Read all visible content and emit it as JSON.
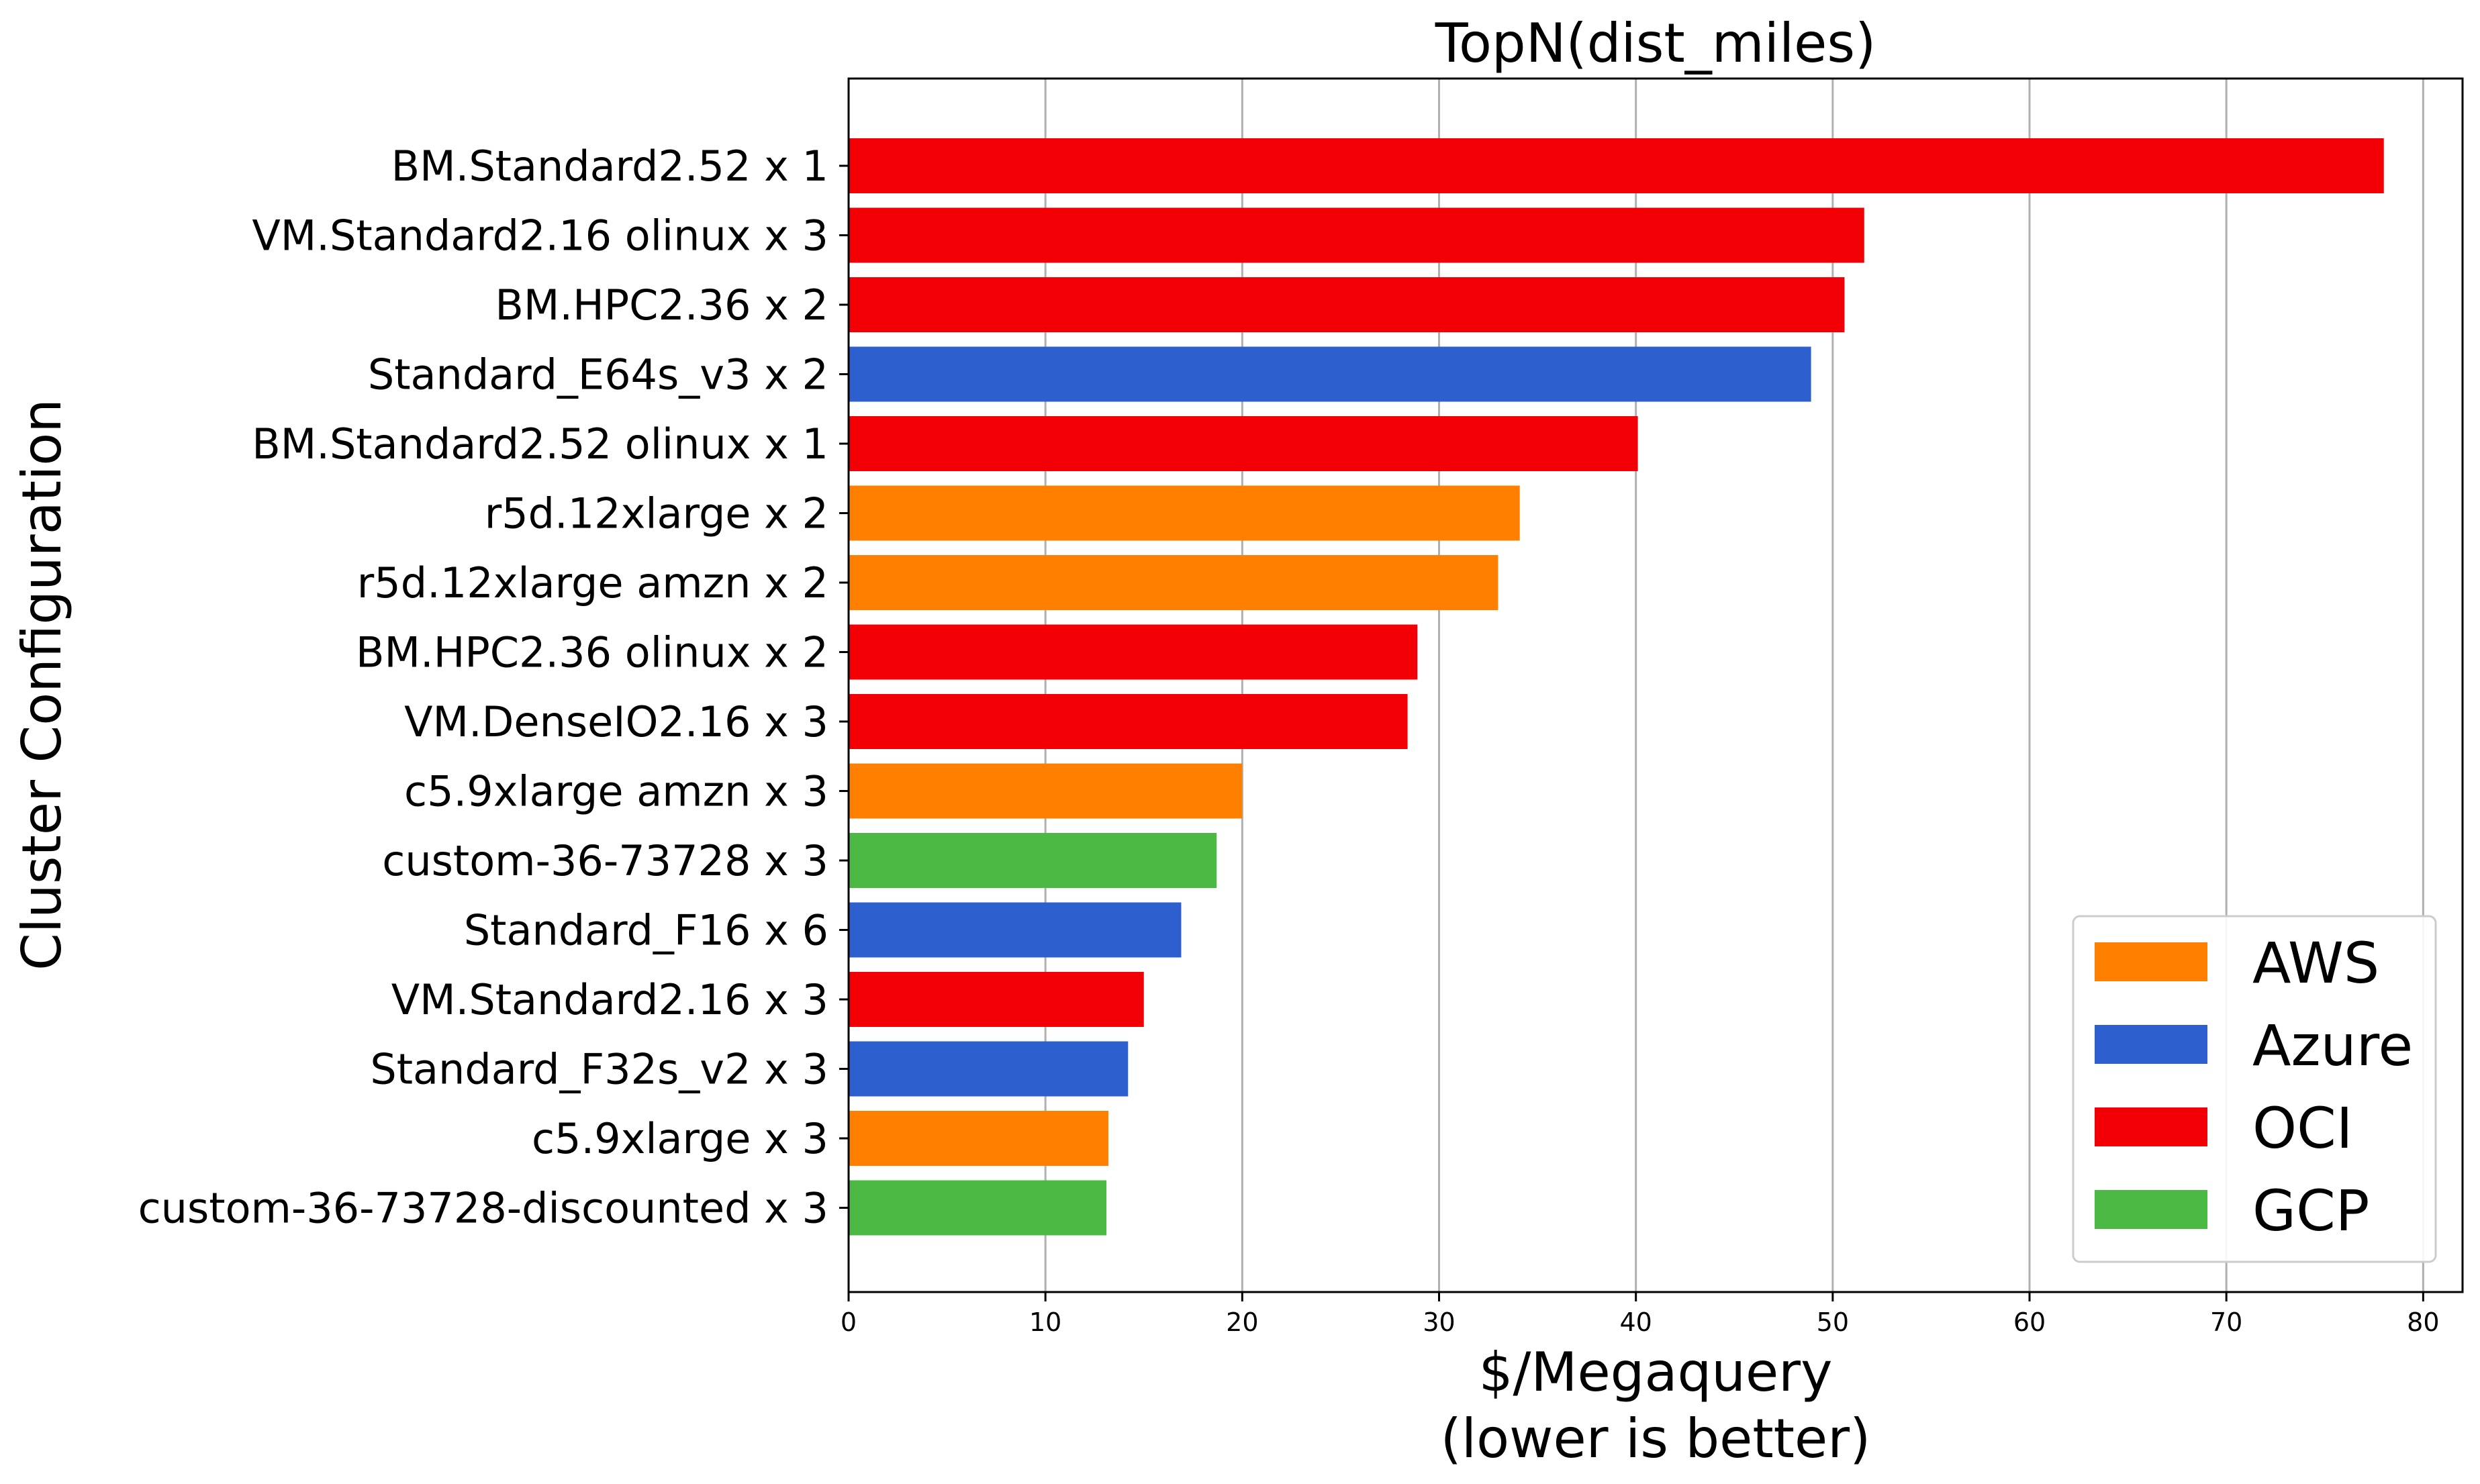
{
  "chart_data": {
    "type": "bar",
    "orientation": "horizontal",
    "title": "TopN(dist_miles)",
    "xlabel_lines": [
      "$/Megaquery",
      "(lower is better)"
    ],
    "ylabel": "Cluster Configuration",
    "xlim": [
      0,
      82
    ],
    "xticks": [
      0,
      10,
      20,
      30,
      40,
      50,
      60,
      70,
      80
    ],
    "grid": "vertical",
    "legend_position": "lower-right",
    "series": [
      {
        "name": "AWS",
        "color": "#ff8000"
      },
      {
        "name": "Azure",
        "color": "#2e5fcf"
      },
      {
        "name": "OCI",
        "color": "#f20006"
      },
      {
        "name": "GCP",
        "color": "#4cb944"
      }
    ],
    "bars": [
      {
        "label": "BM.Standard2.52 x 1",
        "value": 78.0,
        "series": "OCI"
      },
      {
        "label": "VM.Standard2.16 olinux x 3",
        "value": 51.6,
        "series": "OCI"
      },
      {
        "label": "BM.HPC2.36 x 2",
        "value": 50.6,
        "series": "OCI"
      },
      {
        "label": "Standard_E64s_v3 x 2",
        "value": 48.9,
        "series": "Azure"
      },
      {
        "label": "BM.Standard2.52 olinux x 1",
        "value": 40.1,
        "series": "OCI"
      },
      {
        "label": "r5d.12xlarge x 2",
        "value": 34.1,
        "series": "AWS"
      },
      {
        "label": "r5d.12xlarge amzn x 2",
        "value": 33.0,
        "series": "AWS"
      },
      {
        "label": "BM.HPC2.36 olinux x 2",
        "value": 28.9,
        "series": "OCI"
      },
      {
        "label": "VM.DenseIO2.16 x 3",
        "value": 28.4,
        "series": "OCI"
      },
      {
        "label": "c5.9xlarge amzn x 3",
        "value": 20.0,
        "series": "AWS"
      },
      {
        "label": "custom-36-73728 x 3",
        "value": 18.7,
        "series": "GCP"
      },
      {
        "label": "Standard_F16 x 6",
        "value": 16.9,
        "series": "Azure"
      },
      {
        "label": "VM.Standard2.16 x 3",
        "value": 15.0,
        "series": "OCI"
      },
      {
        "label": "Standard_F32s_v2 x 3",
        "value": 14.2,
        "series": "Azure"
      },
      {
        "label": "c5.9xlarge x 3",
        "value": 13.2,
        "series": "AWS"
      },
      {
        "label": "custom-36-73728-discounted x 3",
        "value": 13.1,
        "series": "GCP"
      }
    ]
  }
}
